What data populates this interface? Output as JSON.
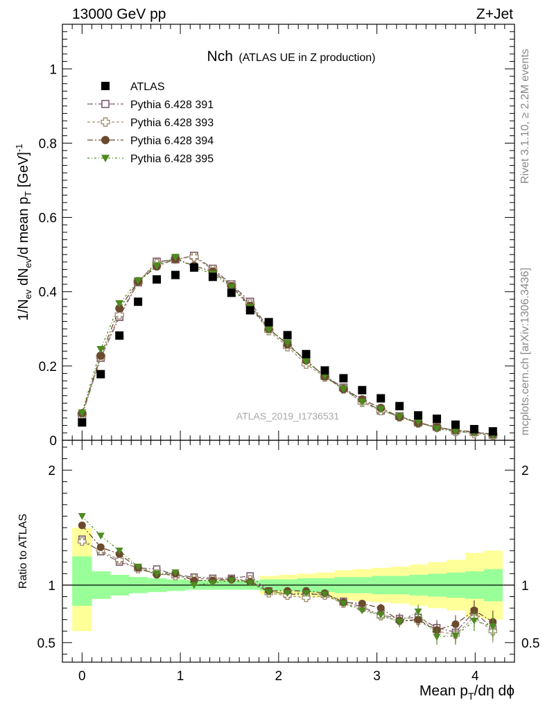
{
  "header": {
    "energy_label": "13000 GeV pp",
    "process_label": "Z+Jet",
    "plot_title_main": "Nch",
    "plot_title_sub": "(ATLAS UE in Z production)",
    "analysis_id": "ATLAS_2019_I1736531",
    "side_label_rivet": "Rivet 3.1.10, ≥ 2.2M events",
    "side_label_mcplots": "mcplots.cern.ch [arXiv:1306.3436]"
  },
  "axes": {
    "x_label": "Mean p_T/dη dϕ",
    "y_label_top": "1/N_ev dN_ev/d mean p_T [GeV]^-1",
    "y_label_bottom": "Ratio to ATLAS"
  },
  "colors": {
    "atlas": "#000000",
    "p391": "#7a5a6e",
    "p393": "#a09070",
    "p394": "#6b4a30",
    "p395": "#4d8a20",
    "band_inner": "#99ff99",
    "band_outer": "#ffff99"
  },
  "chart_data": [
    {
      "type": "scatter",
      "title": "Nch (ATLAS UE in Z production)",
      "xlabel": "Mean p_T/dη dϕ",
      "ylabel": "1/N_ev dN_ev/d mean p_T [GeV]^-1",
      "xlim": [
        -0.2,
        4.4
      ],
      "ylim": [
        0,
        1.12
      ],
      "x_ticks": [
        "0",
        "1",
        "2",
        "3",
        "4"
      ],
      "y_ticks": [
        "0",
        "0.2",
        "0.4",
        "0.6",
        "0.8",
        "1"
      ],
      "legend_position": "top-left",
      "x": [
        0.0,
        0.19,
        0.38,
        0.57,
        0.76,
        0.95,
        1.14,
        1.33,
        1.52,
        1.71,
        1.9,
        2.09,
        2.28,
        2.47,
        2.66,
        2.85,
        3.04,
        3.23,
        3.42,
        3.61,
        3.8,
        3.99,
        4.18
      ],
      "series": [
        {
          "name": "ATLAS",
          "marker": "square-filled",
          "values": [
            0.048,
            0.178,
            0.282,
            0.373,
            0.433,
            0.445,
            0.465,
            0.44,
            0.397,
            0.35,
            0.318,
            0.283,
            0.232,
            0.188,
            0.167,
            0.135,
            0.113,
            0.092,
            0.067,
            0.058,
            0.042,
            0.03,
            0.024
          ]
        },
        {
          "name": "Pythia 6.428 391",
          "marker": "square-open",
          "values": [
            0.067,
            0.222,
            0.332,
            0.425,
            0.481,
            0.487,
            0.497,
            0.462,
            0.42,
            0.373,
            0.3,
            0.258,
            0.213,
            0.173,
            0.142,
            0.108,
            0.08,
            0.065,
            0.048,
            0.036,
            0.026,
            0.022,
            0.015
          ]
        },
        {
          "name": "Pythia 6.428 393",
          "marker": "cross-open",
          "values": [
            0.07,
            0.225,
            0.338,
            0.427,
            0.476,
            0.488,
            0.494,
            0.459,
            0.418,
            0.367,
            0.295,
            0.252,
            0.205,
            0.17,
            0.138,
            0.102,
            0.08,
            0.063,
            0.046,
            0.035,
            0.024,
            0.018,
            0.014
          ]
        },
        {
          "name": "Pythia 6.428 394",
          "marker": "circle-filled",
          "values": [
            0.073,
            0.228,
            0.355,
            0.427,
            0.468,
            0.488,
            0.47,
            0.454,
            0.415,
            0.362,
            0.3,
            0.258,
            0.215,
            0.172,
            0.138,
            0.11,
            0.087,
            0.063,
            0.047,
            0.035,
            0.027,
            0.023,
            0.016
          ]
        },
        {
          "name": "Pythia 6.428 395",
          "marker": "triangle-down-filled",
          "values": [
            0.074,
            0.245,
            0.368,
            0.43,
            0.47,
            0.493,
            0.465,
            0.448,
            0.412,
            0.358,
            0.297,
            0.262,
            0.212,
            0.174,
            0.138,
            0.103,
            0.084,
            0.063,
            0.05,
            0.031,
            0.024,
            0.02,
            0.014
          ]
        }
      ]
    },
    {
      "type": "scatter",
      "ylabel": "Ratio to ATLAS",
      "xlim": [
        -0.2,
        4.4
      ],
      "ylim": [
        0.33,
        2.26
      ],
      "y_ticks": [
        "0.5",
        "1",
        "2"
      ],
      "x": [
        0.0,
        0.19,
        0.38,
        0.57,
        0.76,
        0.95,
        1.14,
        1.33,
        1.52,
        1.71,
        1.9,
        2.09,
        2.28,
        2.47,
        2.66,
        2.85,
        3.04,
        3.23,
        3.42,
        3.61,
        3.8,
        3.99,
        4.18
      ],
      "band_edges": [
        -0.1,
        0.1,
        0.29,
        0.48,
        0.67,
        0.86,
        1.05,
        1.24,
        1.43,
        1.62,
        1.81,
        2.0,
        2.19,
        2.38,
        2.57,
        2.76,
        2.95,
        3.14,
        3.33,
        3.52,
        3.71,
        3.9,
        4.09,
        4.28
      ],
      "band_inner": {
        "lower": [
          0.82,
          0.88,
          0.91,
          0.93,
          0.94,
          0.95,
          0.96,
          0.96,
          0.96,
          0.96,
          0.95,
          0.95,
          0.94,
          0.94,
          0.93,
          0.93,
          0.92,
          0.92,
          0.91,
          0.9,
          0.89,
          0.88,
          0.86
        ],
        "upper": [
          1.25,
          1.12,
          1.09,
          1.07,
          1.06,
          1.05,
          1.04,
          1.04,
          1.04,
          1.04,
          1.05,
          1.05,
          1.06,
          1.06,
          1.07,
          1.07,
          1.08,
          1.08,
          1.09,
          1.1,
          1.11,
          1.12,
          1.14
        ]
      },
      "band_outer": {
        "lower": [
          0.6,
          0.88,
          0.91,
          0.93,
          0.94,
          0.95,
          0.96,
          0.96,
          0.96,
          0.96,
          0.92,
          0.91,
          0.9,
          0.89,
          0.87,
          0.86,
          0.85,
          0.84,
          0.82,
          0.8,
          0.78,
          0.72,
          0.7
        ],
        "upper": [
          1.5,
          1.12,
          1.09,
          1.07,
          1.06,
          1.05,
          1.04,
          1.04,
          1.04,
          1.04,
          1.08,
          1.09,
          1.1,
          1.11,
          1.13,
          1.14,
          1.15,
          1.16,
          1.18,
          1.2,
          1.22,
          1.28,
          1.3
        ]
      },
      "series": [
        {
          "name": "Pythia 6.428 391",
          "values": [
            1.4,
            1.29,
            1.2,
            1.15,
            1.14,
            1.09,
            1.07,
            1.06,
            1.06,
            1.08,
            0.95,
            0.92,
            0.92,
            0.92,
            0.86,
            0.81,
            0.74,
            0.71,
            0.72,
            0.63,
            0.59,
            0.77,
            0.62
          ]
        },
        {
          "name": "Pythia 6.428 393",
          "values": [
            1.38,
            1.3,
            1.22,
            1.14,
            1.1,
            1.08,
            1.06,
            1.05,
            1.05,
            1.05,
            0.93,
            0.91,
            0.89,
            0.91,
            0.84,
            0.8,
            0.73,
            0.69,
            0.69,
            0.6,
            0.57,
            0.72,
            0.6
          ]
        },
        {
          "name": "Pythia 6.428 394",
          "values": [
            1.52,
            1.33,
            1.27,
            1.15,
            1.09,
            1.1,
            1.04,
            1.04,
            1.05,
            1.03,
            0.95,
            0.95,
            0.95,
            0.93,
            0.85,
            0.84,
            0.8,
            0.69,
            0.7,
            0.61,
            0.66,
            0.78,
            0.68
          ]
        },
        {
          "name": "Pythia 6.428 395",
          "values": [
            1.6,
            1.43,
            1.3,
            1.16,
            1.1,
            1.11,
            1.0,
            1.02,
            1.04,
            1.02,
            0.94,
            0.93,
            0.93,
            0.92,
            0.84,
            0.78,
            0.74,
            0.68,
            0.77,
            0.55,
            0.56,
            0.69,
            0.64
          ]
        }
      ]
    }
  ]
}
